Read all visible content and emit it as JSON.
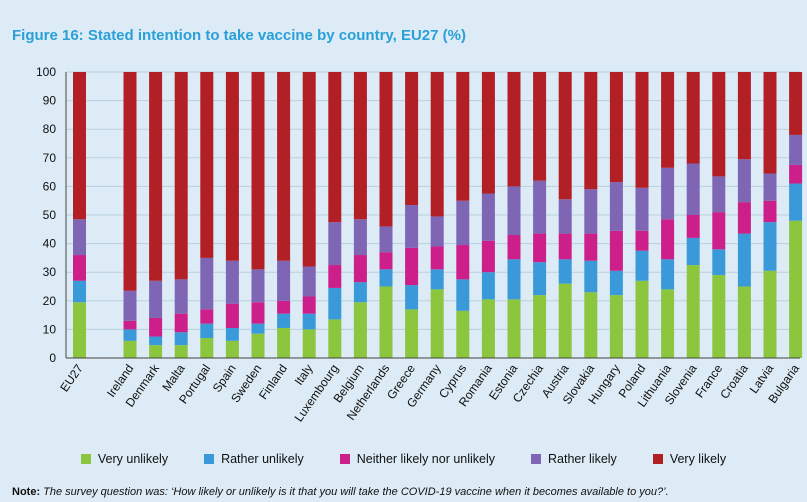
{
  "chart_data": {
    "type": "bar",
    "stacked": true,
    "title": "Figure 16: Stated intention to take vaccine by country, EU27 (%)",
    "xlabel": "",
    "ylabel": "",
    "ylim": [
      0,
      100
    ],
    "yticks": [
      "0",
      "10",
      "20",
      "30",
      "40",
      "50",
      "60",
      "70",
      "80",
      "90",
      "100"
    ],
    "categories": [
      "EU27",
      "Ireland",
      "Denmark",
      "Malta",
      "Portugal",
      "Spain",
      "Sweden",
      "Finland",
      "Italy",
      "Luxembourg",
      "Belgium",
      "Netherlands",
      "Greece",
      "Germany",
      "Cyprus",
      "Romania",
      "Estonia",
      "Czechia",
      "Austria",
      "Slovakia",
      "Hungary",
      "Poland",
      "Lithuania",
      "Slovenia",
      "France",
      "Croatia",
      "Latvia",
      "Bulgaria"
    ],
    "series": [
      {
        "name": "Very unlikely",
        "color": "#8cc63f",
        "values": [
          19.5,
          6,
          4.5,
          4.5,
          7,
          6,
          8.5,
          10.5,
          10,
          13.5,
          19.5,
          25,
          17,
          24,
          16.5,
          20.5,
          20.5,
          22,
          26,
          23,
          22,
          27,
          24,
          32.5,
          29,
          25,
          30.5,
          48
        ]
      },
      {
        "name": "Rather unlikely",
        "color": "#3a9ad9",
        "values": [
          7.5,
          4,
          3,
          4.5,
          5,
          4.5,
          3.5,
          5,
          5.5,
          11,
          7,
          6,
          8.5,
          7,
          11,
          9.5,
          14,
          11.5,
          8.5,
          11,
          8.5,
          10.5,
          10.5,
          9.5,
          9,
          18.5,
          17,
          13
        ]
      },
      {
        "name": "Neither likely nor unlikely",
        "color": "#cc1f8a",
        "values": [
          9,
          3,
          6.5,
          6.5,
          5,
          8.5,
          7.5,
          4.5,
          6,
          8,
          9.5,
          6,
          13,
          8,
          12,
          11,
          8.5,
          10,
          9,
          9.5,
          14,
          7,
          14,
          8,
          13,
          11,
          7.5,
          6.5
        ]
      },
      {
        "name": "Rather likely",
        "color": "#7e66b5",
        "values": [
          12.5,
          10.5,
          13,
          12,
          18,
          15,
          11.5,
          14,
          10.5,
          15,
          12.5,
          9,
          15,
          10.5,
          15.5,
          16.5,
          17,
          18.5,
          12,
          15.5,
          17,
          15,
          18,
          18,
          12.5,
          15,
          9.5,
          10.5
        ]
      },
      {
        "name": "Very likely",
        "color": "#b21f24",
        "values": [
          51.5,
          76.5,
          73,
          72.5,
          65,
          66,
          69,
          66,
          68,
          52.5,
          51.5,
          54,
          46.5,
          50.5,
          45,
          42.5,
          40,
          38,
          44.5,
          41,
          38.5,
          40.5,
          33.5,
          32,
          36.5,
          30.5,
          35.5,
          22
        ]
      }
    ],
    "legend_position": "bottom",
    "grid": true
  },
  "note": {
    "label": "Note:",
    "text": "The survey question was: ‘How likely or unlikely is it that you will take the COVID-19 vaccine when it becomes available to you?’."
  }
}
